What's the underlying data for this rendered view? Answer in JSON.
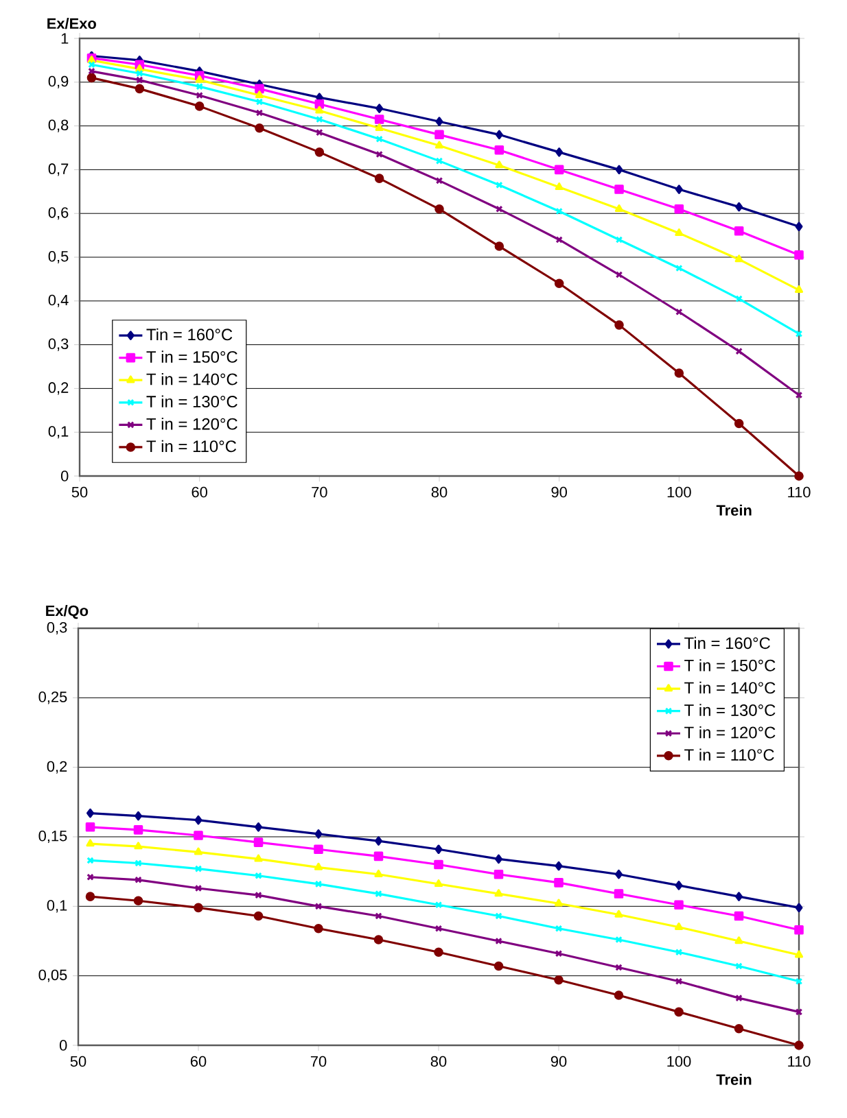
{
  "chart_data": [
    {
      "type": "line",
      "ylabel": "Ex/Exo",
      "xlabel": "Trein",
      "grid": "y",
      "legend": "bottom left",
      "xlim": [
        50,
        110
      ],
      "xticks": [
        50,
        60,
        70,
        80,
        90,
        100,
        110
      ],
      "ylim": [
        0,
        1
      ],
      "yticks": [
        0,
        {
          "value": 0.1,
          "label": "0,1"
        },
        {
          "value": 0.2,
          "label": "0,2"
        },
        {
          "value": 0.3,
          "label": "0,3"
        },
        {
          "value": 0.4,
          "label": "0,4"
        },
        {
          "value": 0.5,
          "label": "0,5"
        },
        {
          "value": 0.6,
          "label": "0,6"
        },
        {
          "value": 0.7,
          "label": "0,7"
        },
        {
          "value": 0.8,
          "label": "0,8"
        },
        {
          "value": 0.9,
          "label": "0,9"
        },
        1
      ],
      "x": [
        51,
        55,
        60,
        65,
        70,
        75,
        80,
        85,
        90,
        95,
        100,
        105,
        110
      ],
      "series": [
        {
          "name": "Tin = 160°C",
          "color": "#000080",
          "marker": "diamond",
          "values": [
            0.96,
            0.95,
            0.925,
            0.895,
            0.865,
            0.84,
            0.81,
            0.78,
            0.74,
            0.7,
            0.655,
            0.615,
            0.57
          ]
        },
        {
          "name": "T in = 150°C",
          "color": "#ff00ff",
          "marker": "square",
          "values": [
            0.955,
            0.94,
            0.915,
            0.885,
            0.85,
            0.815,
            0.78,
            0.745,
            0.7,
            0.655,
            0.61,
            0.56,
            0.505
          ]
        },
        {
          "name": "T in = 140°C",
          "color": "#ffff00",
          "marker": "triangle",
          "values": [
            0.95,
            0.93,
            0.905,
            0.87,
            0.835,
            0.795,
            0.755,
            0.71,
            0.66,
            0.61,
            0.555,
            0.495,
            0.425
          ]
        },
        {
          "name": "T in = 130°C",
          "color": "#00ffff",
          "marker": "cross",
          "values": [
            0.94,
            0.92,
            0.89,
            0.855,
            0.815,
            0.77,
            0.72,
            0.665,
            0.605,
            0.54,
            0.475,
            0.405,
            0.325
          ]
        },
        {
          "name": "T in = 120°C",
          "color": "#800080",
          "marker": "cross",
          "values": [
            0.925,
            0.905,
            0.87,
            0.83,
            0.785,
            0.735,
            0.675,
            0.61,
            0.54,
            0.46,
            0.375,
            0.285,
            0.185
          ]
        },
        {
          "name": "T in = 110°C",
          "color": "#800000",
          "marker": "circle",
          "values": [
            0.91,
            0.885,
            0.845,
            0.795,
            0.74,
            0.68,
            0.61,
            0.525,
            0.44,
            0.345,
            0.235,
            0.12,
            0.0
          ]
        }
      ]
    },
    {
      "type": "line",
      "ylabel": "Ex/Qo",
      "xlabel": "Trein",
      "grid": "y",
      "legend": "top right",
      "xlim": [
        50,
        110
      ],
      "xticks": [
        50,
        60,
        70,
        80,
        90,
        100,
        110
      ],
      "ylim": [
        0,
        0.3
      ],
      "yticks": [
        0,
        {
          "value": 0.05,
          "label": "0,05"
        },
        {
          "value": 0.1,
          "label": "0,1"
        },
        {
          "value": 0.15,
          "label": "0,15"
        },
        {
          "value": 0.2,
          "label": "0,2"
        },
        {
          "value": 0.25,
          "label": "0,25"
        },
        {
          "value": 0.3,
          "label": "0,3"
        }
      ],
      "x": [
        51,
        55,
        60,
        65,
        70,
        75,
        80,
        85,
        90,
        95,
        100,
        105,
        110
      ],
      "series": [
        {
          "name": "Tin = 160°C",
          "color": "#000080",
          "marker": "diamond",
          "values": [
            0.167,
            0.165,
            0.162,
            0.157,
            0.152,
            0.147,
            0.141,
            0.134,
            0.129,
            0.123,
            0.115,
            0.107,
            0.099
          ]
        },
        {
          "name": "T in = 150°C",
          "color": "#ff00ff",
          "marker": "square",
          "values": [
            0.157,
            0.155,
            0.151,
            0.146,
            0.141,
            0.136,
            0.13,
            0.123,
            0.117,
            0.109,
            0.101,
            0.093,
            0.083
          ]
        },
        {
          "name": "T in = 140°C",
          "color": "#ffff00",
          "marker": "triangle",
          "values": [
            0.145,
            0.143,
            0.139,
            0.134,
            0.128,
            0.123,
            0.116,
            0.109,
            0.102,
            0.094,
            0.085,
            0.075,
            0.065
          ]
        },
        {
          "name": "T in = 130°C",
          "color": "#00ffff",
          "marker": "cross",
          "values": [
            0.133,
            0.131,
            0.127,
            0.122,
            0.116,
            0.109,
            0.101,
            0.093,
            0.084,
            0.076,
            0.067,
            0.057,
            0.046
          ]
        },
        {
          "name": "T in = 120°C",
          "color": "#800080",
          "marker": "cross",
          "values": [
            0.121,
            0.119,
            0.113,
            0.108,
            0.1,
            0.093,
            0.084,
            0.075,
            0.066,
            0.056,
            0.046,
            0.034,
            0.024
          ]
        },
        {
          "name": "T in = 110°C",
          "color": "#800000",
          "marker": "circle",
          "values": [
            0.107,
            0.104,
            0.099,
            0.093,
            0.084,
            0.076,
            0.067,
            0.057,
            0.047,
            0.036,
            0.024,
            0.012,
            0.0
          ]
        }
      ]
    }
  ]
}
